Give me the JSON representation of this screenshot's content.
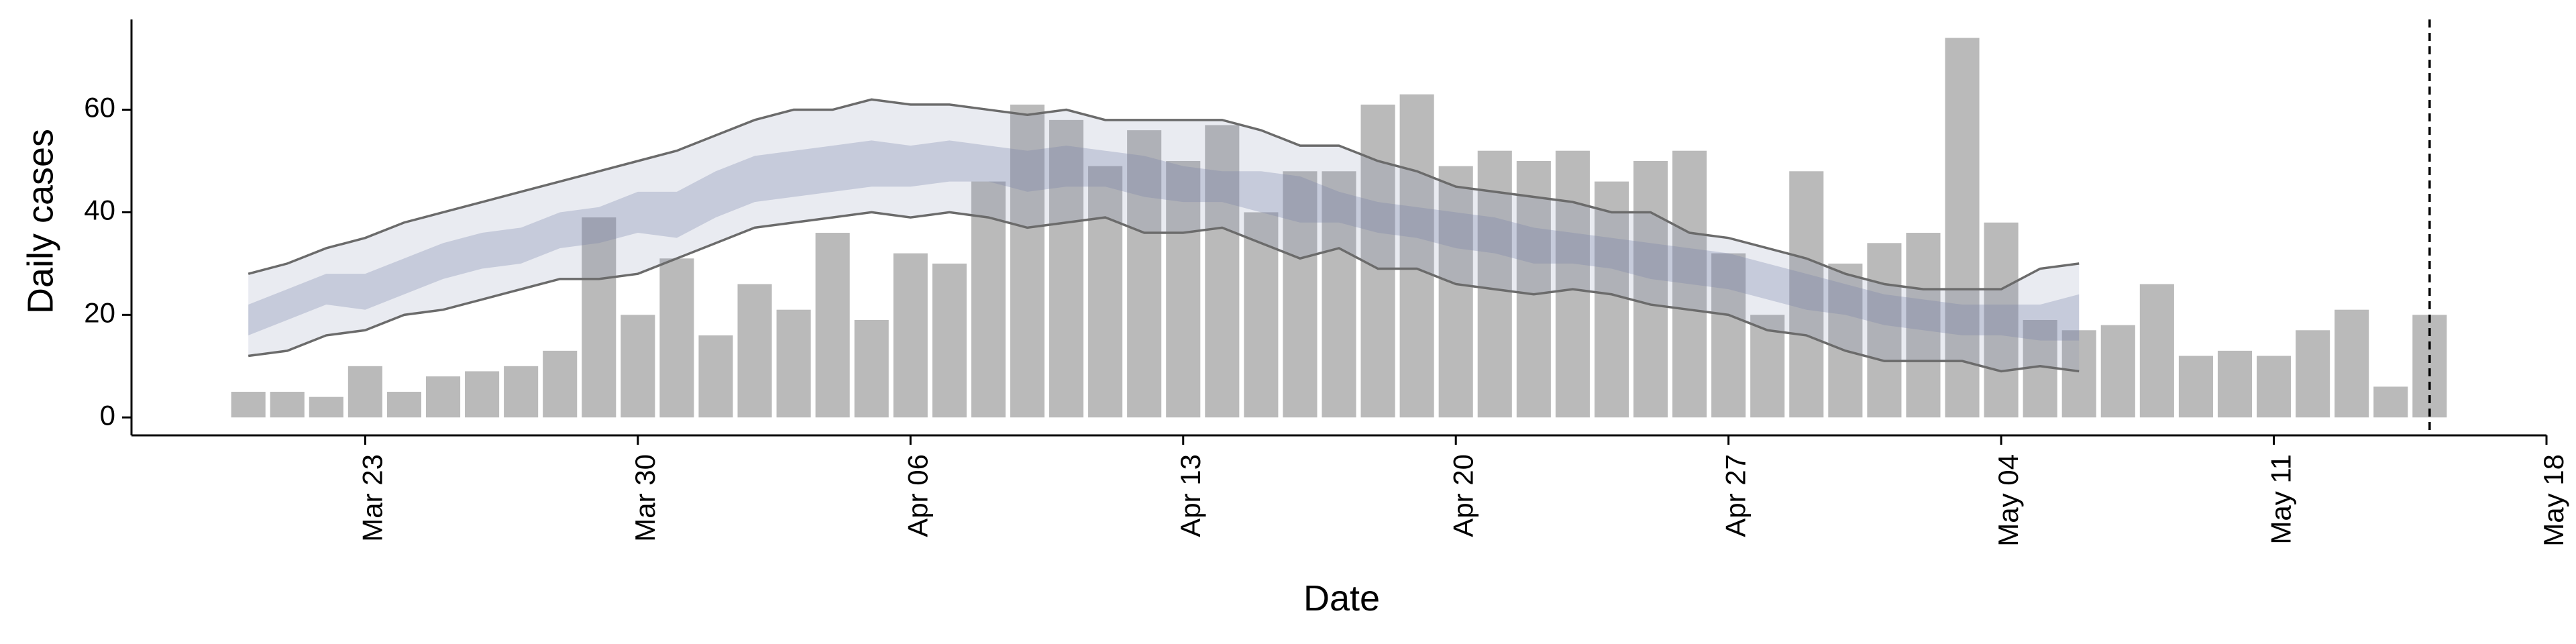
{
  "chart_data": {
    "type": "bar",
    "xlabel": "Date",
    "ylabel": "Daily cases",
    "x": [
      "Mar 20",
      "Mar 21",
      "Mar 22",
      "Mar 23",
      "Mar 24",
      "Mar 25",
      "Mar 26",
      "Mar 27",
      "Mar 28",
      "Mar 29",
      "Mar 30",
      "Mar 31",
      "Apr 01",
      "Apr 02",
      "Apr 03",
      "Apr 04",
      "Apr 05",
      "Apr 06",
      "Apr 07",
      "Apr 08",
      "Apr 09",
      "Apr 10",
      "Apr 11",
      "Apr 12",
      "Apr 13",
      "Apr 14",
      "Apr 15",
      "Apr 16",
      "Apr 17",
      "Apr 18",
      "Apr 19",
      "Apr 20",
      "Apr 21",
      "Apr 22",
      "Apr 23",
      "Apr 24",
      "Apr 25",
      "Apr 26",
      "Apr 27",
      "Apr 28",
      "Apr 29",
      "Apr 30",
      "May 01",
      "May 02",
      "May 03",
      "May 04",
      "May 05",
      "May 06",
      "May 07",
      "May 08",
      "May 09",
      "May 10",
      "May 11",
      "May 12",
      "May 13",
      "May 14",
      "May 15"
    ],
    "values": [
      5,
      5,
      4,
      10,
      5,
      8,
      9,
      10,
      13,
      39,
      20,
      31,
      16,
      26,
      21,
      36,
      19,
      32,
      30,
      46,
      61,
      58,
      49,
      56,
      50,
      57,
      40,
      48,
      48,
      61,
      63,
      49,
      52,
      50,
      52,
      46,
      50,
      52,
      32,
      20,
      48,
      30,
      34,
      36,
      74,
      38,
      19,
      17,
      18,
      26,
      12,
      13,
      12,
      17,
      21,
      6,
      20
    ],
    "color": "#bababa",
    "band_color": "#7882aa",
    "line_color": "#6b6b6b",
    "outer_band": {
      "upper": [
        28,
        30,
        33,
        35,
        38,
        40,
        42,
        44,
        46,
        48,
        50,
        52,
        55,
        58,
        60,
        60,
        62,
        61,
        61,
        60,
        59,
        60,
        58,
        58,
        58,
        58,
        56,
        53,
        53,
        50,
        48,
        45,
        44,
        43,
        42,
        40,
        40,
        36,
        35,
        33,
        31,
        28,
        26,
        25,
        25,
        25,
        29,
        30,
        null,
        null,
        null,
        null,
        null,
        null,
        null,
        null,
        null
      ],
      "lower": [
        12,
        13,
        16,
        17,
        20,
        21,
        23,
        25,
        27,
        27,
        28,
        31,
        34,
        37,
        38,
        39,
        40,
        39,
        40,
        39,
        37,
        38,
        39,
        36,
        36,
        37,
        34,
        31,
        33,
        29,
        29,
        26,
        25,
        24,
        25,
        24,
        22,
        21,
        20,
        17,
        16,
        13,
        11,
        11,
        11,
        9,
        10,
        9,
        null,
        null,
        null,
        null,
        null,
        null,
        null,
        null,
        null
      ]
    },
    "inner_band": {
      "upper": [
        22,
        25,
        28,
        28,
        31,
        34,
        36,
        37,
        40,
        41,
        44,
        44,
        48,
        51,
        52,
        53,
        54,
        53,
        54,
        53,
        52,
        53,
        52,
        51,
        49,
        48,
        48,
        47,
        44,
        42,
        41,
        40,
        39,
        37,
        36,
        35,
        34,
        33,
        32,
        30,
        28,
        26,
        24,
        23,
        22,
        22,
        22,
        24,
        null,
        null,
        null,
        null,
        null,
        null,
        null,
        null,
        null
      ],
      "lower": [
        16,
        19,
        22,
        21,
        24,
        27,
        29,
        30,
        33,
        34,
        36,
        35,
        39,
        42,
        43,
        44,
        45,
        45,
        46,
        46,
        44,
        45,
        45,
        43,
        42,
        42,
        40,
        38,
        38,
        36,
        35,
        33,
        32,
        30,
        30,
        29,
        27,
        26,
        25,
        23,
        21,
        20,
        18,
        17,
        16,
        16,
        15,
        15,
        null,
        null,
        null,
        null,
        null,
        null,
        null,
        null,
        null
      ]
    },
    "vline": "May 15",
    "xlim": [
      "Mar 17",
      "May 18"
    ],
    "xticks": [
      "Mar 23",
      "Mar 30",
      "Apr 06",
      "Apr 13",
      "Apr 20",
      "Apr 27",
      "May 04",
      "May 11",
      "May 18"
    ],
    "ylim": [
      -3.5,
      77.6
    ],
    "yticks": [
      0,
      20,
      40,
      60
    ]
  }
}
